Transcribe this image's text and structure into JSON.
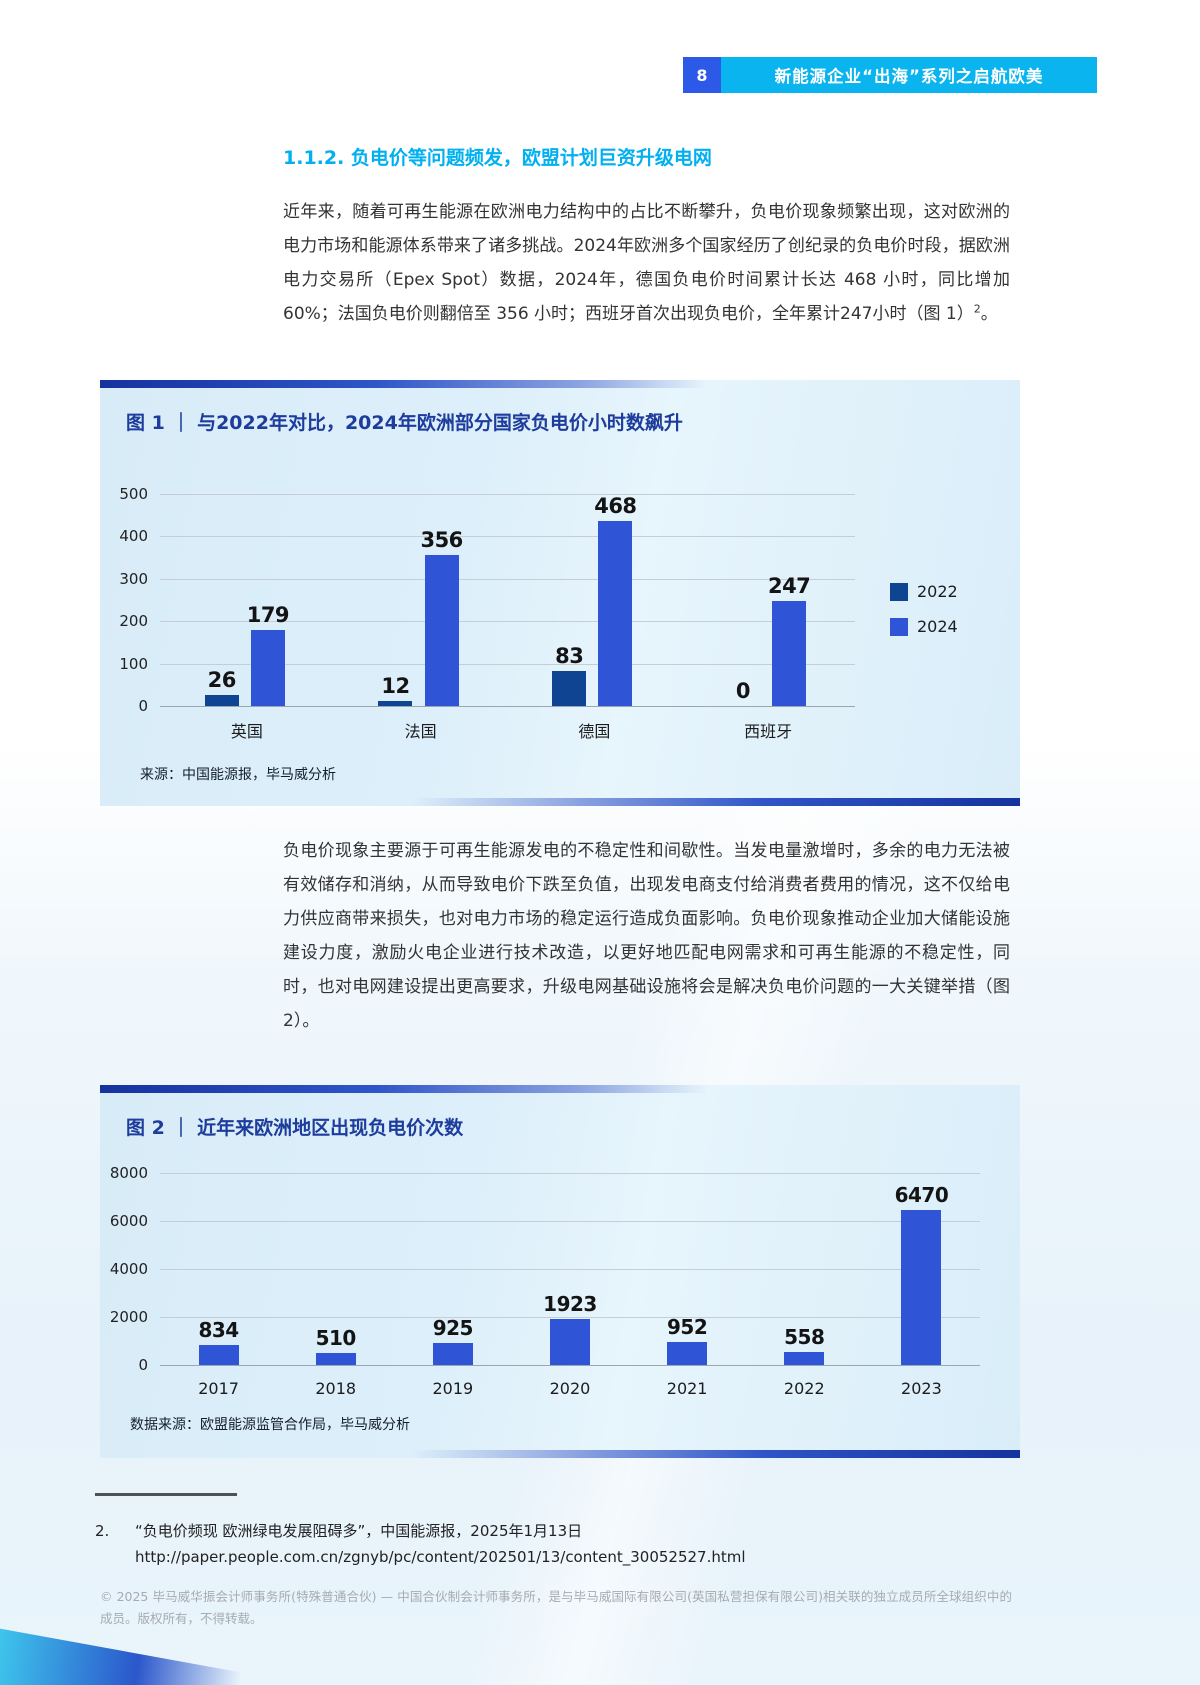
{
  "header": {
    "page_number": "8",
    "title": "新能源企业“出海”系列之启航欧美"
  },
  "section_heading": "1.1.2. 负电价等问题频发，欧盟计划巨资升级电网",
  "paragraphs": {
    "p1_main": "近年来，随着可再生能源在欧洲电力结构中的占比不断攀升，负电价现象频繁出现，这对欧洲的电力市场和能源体系带来了诸多挑战。2024年欧洲多个国家经历了创纪录的负电价时段，据欧洲电力交易所（Epex Spot）数据，2024年，德国负电价时间累计长达 468 小时，同比增加 60%；法国负电价则翻倍至 356 小时；西班牙首次出现负电价，全年累计247小时（图 1）",
    "p1_footnote_ref": "2",
    "p1_tail": "。",
    "p2": "负电价现象主要源于可再生能源发电的不稳定性和间歇性。当发电量激增时，多余的电力无法被有效储存和消纳，从而导致电价下跌至负值，出现发电商支付给消费者费用的情况，这不仅给电力供应商带来损失，也对电力市场的稳定运行造成负面影响。负电价现象推动企业加大储能设施建设力度，激励火电企业进行技术改造，以更好地匹配电网需求和可再生能源的不稳定性，同时，也对电网建设提出更高要求，升级电网基础设施将会是解决负电价问题的一大关键举措（图2）。"
  },
  "chart_data": [
    {
      "type": "bar",
      "title": "图 1 ｜ 与2022年对比，2024年欧洲部分国家负电价小时数飙升",
      "categories": [
        "英国",
        "法国",
        "德国",
        "西班牙"
      ],
      "series": [
        {
          "name": "2022",
          "color": "#0e4492",
          "values": [
            26,
            12,
            83,
            0
          ]
        },
        {
          "name": "2024",
          "color": "#2f55d6",
          "values": [
            179,
            356,
            468,
            247
          ]
        }
      ],
      "ylim": [
        0,
        500
      ],
      "yticks": [
        500,
        400,
        300,
        200,
        100,
        0
      ],
      "grid": true,
      "legend_position": "right",
      "xlabel": "",
      "ylabel": "",
      "source": "来源：中国能源报，毕马威分析"
    },
    {
      "type": "bar",
      "title": "图 2 ｜ 近年来欧洲地区出现负电价次数",
      "categories": [
        "2017",
        "2018",
        "2019",
        "2020",
        "2021",
        "2022",
        "2023"
      ],
      "series": [
        {
          "name": "次数",
          "color": "#2f55d6",
          "values": [
            834,
            510,
            925,
            1923,
            952,
            558,
            6470
          ]
        }
      ],
      "ylim": [
        0,
        8000
      ],
      "yticks": [
        8000,
        6000,
        4000,
        2000,
        0
      ],
      "grid": true,
      "legend_position": "none",
      "xlabel": "",
      "ylabel": "",
      "source": "数据来源：欧盟能源监管合作局，毕马威分析"
    }
  ],
  "footnote": {
    "marker": "2.",
    "text": "“负电价频现 欧洲绿电发展阻碍多”，中国能源报，2025年1月13日",
    "url": "http://paper.people.com.cn/zgnyb/pc/content/202501/13/content_30052527.html"
  },
  "footer": {
    "copyright": "© 2025 毕马威华振会计师事务所(特殊普通合伙) — 中国合伙制会计师事务所，是与毕马威国际有限公司(英国私营担保有限公司)相关联的独立成员所全球组织中的成员。版权所有，不得转载。"
  },
  "colors": {
    "accent_cyan": "#00b0f0",
    "header_box_blue": "#2d59e8",
    "card_title_navy": "#1d3c9c",
    "bar_2022": "#0e4492",
    "bar_2024": "#2f55d6",
    "card_background": "#d9edf9"
  }
}
